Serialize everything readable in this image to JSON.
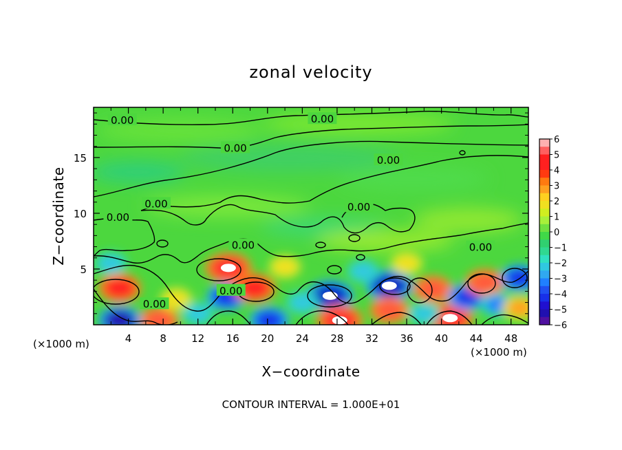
{
  "chart_data": {
    "type": "heatmap",
    "title": "zonal velocity",
    "xlabel": "X−coordinate",
    "ylabel": "Z−coordinate",
    "x_units": "(×1000 m)",
    "y_units": "(×1000 m)",
    "xlim": [
      0,
      50
    ],
    "ylim": [
      0,
      19.5
    ],
    "x_ticks": [
      "4",
      "8",
      "12",
      "16",
      "20",
      "24",
      "28",
      "32",
      "36",
      "40",
      "44",
      "48"
    ],
    "y_ticks": [
      "5",
      "10",
      "15"
    ],
    "footer": "CONTOUR INTERVAL = 1.000E+01",
    "colorbar": {
      "range": [
        -6,
        6
      ],
      "tick_labels": [
        "6",
        "5",
        "4",
        "3",
        "2",
        "1",
        "0",
        "−1",
        "−2",
        "−3",
        "−4",
        "−5",
        "−6"
      ]
    },
    "contour_label": "0.00",
    "contour_labels": [
      {
        "x": 3.3,
        "z": 18.4
      },
      {
        "x": 26.3,
        "z": 18.5
      },
      {
        "x": 16.3,
        "z": 15.9
      },
      {
        "x": 33.9,
        "z": 14.8
      },
      {
        "x": 7.2,
        "z": 10.9
      },
      {
        "x": 2.8,
        "z": 9.7
      },
      {
        "x": 30.5,
        "z": 10.6
      },
      {
        "x": 17.2,
        "z": 7.2
      },
      {
        "x": 44.5,
        "z": 7.0
      },
      {
        "x": 15.8,
        "z": 3.1
      },
      {
        "x": 7.0,
        "z": 1.9
      }
    ],
    "features": [
      {
        "x": 3,
        "z": 3.3,
        "value": 5
      },
      {
        "x": 7.5,
        "z": 0.4,
        "value": 4
      },
      {
        "x": 3,
        "z": 0.4,
        "value": -5
      },
      {
        "x": 9.5,
        "z": 2.3,
        "value": 2
      },
      {
        "x": 15.5,
        "z": 5.1,
        "value": 6
      },
      {
        "x": 15.3,
        "z": 2.5,
        "value": -4
      },
      {
        "x": 18.5,
        "z": 3.3,
        "value": 5
      },
      {
        "x": 20.2,
        "z": 0.4,
        "value": -4
      },
      {
        "x": 12,
        "z": 1.0,
        "value": -2
      },
      {
        "x": 22,
        "z": 5.2,
        "value": 2
      },
      {
        "x": 27.2,
        "z": 2.6,
        "value": -6
      },
      {
        "x": 28.3,
        "z": 0.4,
        "value": 6
      },
      {
        "x": 34,
        "z": 3.5,
        "value": -6
      },
      {
        "x": 34,
        "z": 1.3,
        "value": 4
      },
      {
        "x": 39,
        "z": 3.2,
        "value": 4
      },
      {
        "x": 41,
        "z": 0.6,
        "value": 6
      },
      {
        "x": 43,
        "z": 2.5,
        "value": -4
      },
      {
        "x": 45,
        "z": 3.8,
        "value": 4
      },
      {
        "x": 46.5,
        "z": 1.8,
        "value": -3
      },
      {
        "x": 49,
        "z": 4.2,
        "value": -4
      },
      {
        "x": 49,
        "z": 1.5,
        "value": 3
      },
      {
        "x": 38,
        "z": 1.0,
        "value": -2
      },
      {
        "x": 31,
        "z": 4.8,
        "value": -2
      },
      {
        "x": 36,
        "z": 5.5,
        "value": 2
      },
      {
        "x": 2,
        "z": 5.5,
        "value": -2
      },
      {
        "x": 24,
        "z": 2.0,
        "value": -2
      }
    ]
  }
}
